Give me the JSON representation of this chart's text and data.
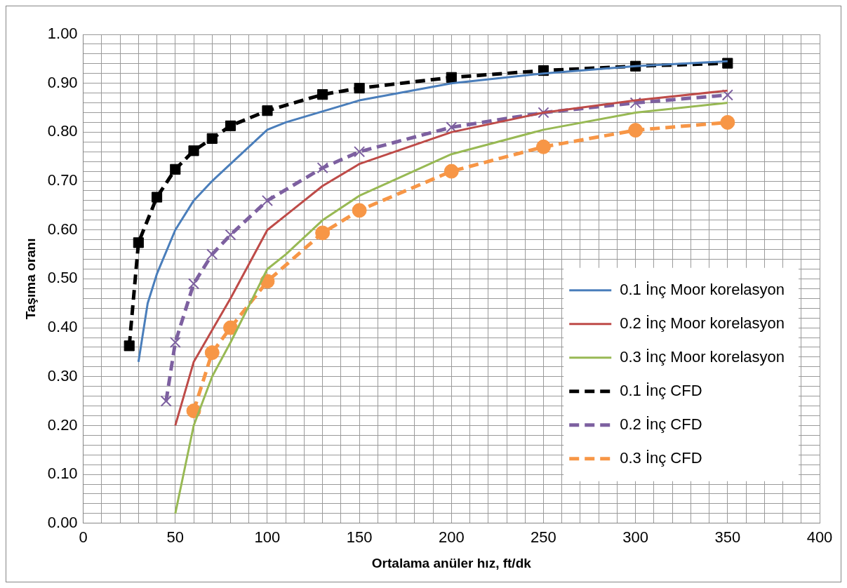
{
  "chart_data": {
    "type": "line",
    "xlabel": "Ortalama anüler hız, ft/dk",
    "ylabel": "Taşıma oranı",
    "xlim": [
      0,
      400
    ],
    "ylim": [
      0,
      1
    ],
    "xticks": [
      0,
      {
        "value": 10,
        "label": null
      },
      {
        "value": 20,
        "label": null
      },
      {
        "value": 30,
        "label": null
      },
      {
        "value": 40,
        "label": null
      },
      50,
      {
        "value": 60,
        "label": null
      },
      {
        "value": 70,
        "label": null
      },
      {
        "value": 80,
        "label": null
      },
      {
        "value": 90,
        "label": null
      },
      100,
      {
        "value": 110,
        "label": null
      },
      {
        "value": 120,
        "label": null
      },
      {
        "value": 130,
        "label": null
      },
      {
        "value": 140,
        "label": null
      },
      150,
      {
        "value": 160,
        "label": null
      },
      {
        "value": 170,
        "label": null
      },
      {
        "value": 180,
        "label": null
      },
      {
        "value": 190,
        "label": null
      },
      200,
      {
        "value": 210,
        "label": null
      },
      {
        "value": 220,
        "label": null
      },
      {
        "value": 230,
        "label": null
      },
      {
        "value": 240,
        "label": null
      },
      250,
      {
        "value": 260,
        "label": null
      },
      {
        "value": 270,
        "label": null
      },
      {
        "value": 280,
        "label": null
      },
      {
        "value": 290,
        "label": null
      },
      300,
      {
        "value": 310,
        "label": null
      },
      {
        "value": 320,
        "label": null
      },
      {
        "value": 330,
        "label": null
      },
      {
        "value": 340,
        "label": null
      },
      350,
      {
        "value": 360,
        "label": null
      },
      {
        "value": 370,
        "label": null
      },
      {
        "value": 380,
        "label": null
      },
      {
        "value": 390,
        "label": null
      },
      400
    ],
    "yticks": [
      {
        "value": 0,
        "label": "0.00"
      },
      {
        "value": 0.02,
        "label": null
      },
      {
        "value": 0.04,
        "label": null
      },
      {
        "value": 0.06,
        "label": null
      },
      {
        "value": 0.08,
        "label": null
      },
      {
        "value": 0.1,
        "label": "0.10"
      },
      {
        "value": 0.12,
        "label": null
      },
      {
        "value": 0.14,
        "label": null
      },
      {
        "value": 0.16,
        "label": null
      },
      {
        "value": 0.18,
        "label": null
      },
      {
        "value": 0.2,
        "label": "0.20"
      },
      {
        "value": 0.22,
        "label": null
      },
      {
        "value": 0.24,
        "label": null
      },
      {
        "value": 0.26,
        "label": null
      },
      {
        "value": 0.28,
        "label": null
      },
      {
        "value": 0.3,
        "label": "0.30"
      },
      {
        "value": 0.32,
        "label": null
      },
      {
        "value": 0.34,
        "label": null
      },
      {
        "value": 0.36,
        "label": null
      },
      {
        "value": 0.38,
        "label": null
      },
      {
        "value": 0.4,
        "label": "0.40"
      },
      {
        "value": 0.42,
        "label": null
      },
      {
        "value": 0.44,
        "label": null
      },
      {
        "value": 0.46,
        "label": null
      },
      {
        "value": 0.48,
        "label": null
      },
      {
        "value": 0.5,
        "label": "0.50"
      },
      {
        "value": 0.52,
        "label": null
      },
      {
        "value": 0.54,
        "label": null
      },
      {
        "value": 0.56,
        "label": null
      },
      {
        "value": 0.58,
        "label": null
      },
      {
        "value": 0.6,
        "label": "0.60"
      },
      {
        "value": 0.62,
        "label": null
      },
      {
        "value": 0.64,
        "label": null
      },
      {
        "value": 0.66,
        "label": null
      },
      {
        "value": 0.68,
        "label": null
      },
      {
        "value": 0.7,
        "label": "0.70"
      },
      {
        "value": 0.72,
        "label": null
      },
      {
        "value": 0.74,
        "label": null
      },
      {
        "value": 0.76,
        "label": null
      },
      {
        "value": 0.78,
        "label": null
      },
      {
        "value": 0.8,
        "label": "0.80"
      },
      {
        "value": 0.82,
        "label": null
      },
      {
        "value": 0.84,
        "label": null
      },
      {
        "value": 0.86,
        "label": null
      },
      {
        "value": 0.88,
        "label": null
      },
      {
        "value": 0.9,
        "label": "0.90"
      },
      {
        "value": 0.92,
        "label": null
      },
      {
        "value": 0.94,
        "label": null
      },
      {
        "value": 0.96,
        "label": null
      },
      {
        "value": 0.98,
        "label": null
      },
      {
        "value": 1,
        "label": "1.00"
      }
    ],
    "grid": true,
    "legend": "bottom right",
    "series": [
      {
        "name": "0.1 İnç Moor korelasyon",
        "color": "#4a7ebb",
        "marker": "none",
        "line_style": "solid",
        "x": [
          30,
          35,
          40,
          50,
          60,
          70,
          80,
          100,
          110,
          150,
          200,
          250,
          300,
          350
        ],
        "values": [
          0.33,
          0.45,
          0.51,
          0.6,
          0.66,
          0.7,
          0.735,
          0.805,
          0.82,
          0.865,
          0.9,
          0.92,
          0.935,
          0.945
        ]
      },
      {
        "name": "0.2 İnç Moor korelasyon",
        "color": "#be4b48",
        "marker": "none",
        "line_style": "solid",
        "x": [
          50,
          60,
          70,
          80,
          100,
          110,
          130,
          150,
          200,
          250,
          300,
          350
        ],
        "values": [
          0.2,
          0.33,
          0.395,
          0.46,
          0.6,
          0.63,
          0.69,
          0.735,
          0.8,
          0.84,
          0.865,
          0.885
        ]
      },
      {
        "name": "0.3 İnç Moor korelasyon",
        "color": "#98b954",
        "marker": "none",
        "line_style": "solid",
        "x": [
          50,
          60,
          70,
          80,
          100,
          110,
          130,
          150,
          200,
          250,
          300,
          350
        ],
        "values": [
          0.02,
          0.2,
          0.3,
          0.37,
          0.52,
          0.55,
          0.62,
          0.67,
          0.755,
          0.805,
          0.84,
          0.86
        ]
      },
      {
        "name": "0.1 İnç CFD",
        "color": "#000000",
        "marker": "square",
        "line_style": "dashed",
        "x": [
          25,
          30,
          40,
          50,
          60,
          70,
          80,
          100,
          130,
          150,
          200,
          250,
          300,
          350
        ],
        "values": [
          0.363,
          0.574,
          0.667,
          0.724,
          0.762,
          0.787,
          0.813,
          0.844,
          0.877,
          0.89,
          0.912,
          0.926,
          0.935,
          0.941
        ]
      },
      {
        "name": "0.2 İnç CFD",
        "color": "#7d60a0",
        "marker": "cross",
        "line_style": "dashed",
        "x": [
          45,
          50,
          60,
          70,
          80,
          100,
          130,
          150,
          200,
          250,
          300,
          350
        ],
        "values": [
          0.25,
          0.37,
          0.49,
          0.55,
          0.59,
          0.66,
          0.727,
          0.76,
          0.81,
          0.84,
          0.86,
          0.876
        ]
      },
      {
        "name": "0.3 İnç CFD",
        "color": "#f79646",
        "marker": "circle",
        "line_style": "dashed",
        "x": [
          60,
          70,
          80,
          100,
          130,
          150,
          200,
          250,
          300,
          350
        ],
        "values": [
          0.23,
          0.349,
          0.4,
          0.495,
          0.594,
          0.64,
          0.72,
          0.77,
          0.804,
          0.82
        ]
      }
    ]
  }
}
